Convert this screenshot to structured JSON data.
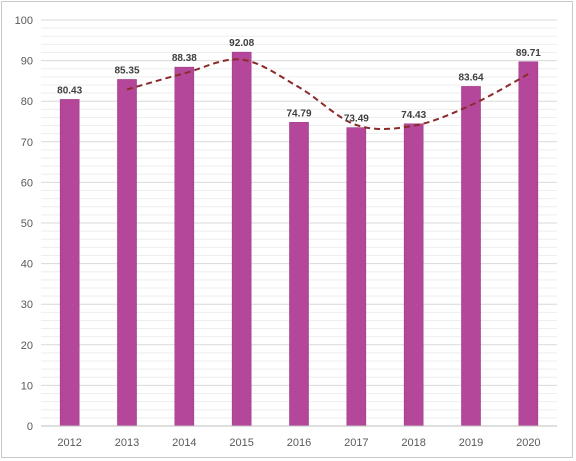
{
  "chart_data": {
    "type": "bar",
    "categories": [
      "2012",
      "2013",
      "2014",
      "2015",
      "2016",
      "2017",
      "2018",
      "2019",
      "2020"
    ],
    "series": [
      {
        "values": [
          80.43,
          85.35,
          88.38,
          92.08,
          74.79,
          73.49,
          74.43,
          83.64,
          89.71
        ]
      }
    ],
    "trendline": {
      "type": "moving-average",
      "period": 2,
      "style": "dashed",
      "color": "#8b2a2a"
    },
    "title": "",
    "xlabel": "",
    "ylabel": "",
    "ylim": [
      0,
      100
    ],
    "yticks": [
      0,
      10,
      20,
      30,
      40,
      50,
      60,
      70,
      80,
      90,
      100
    ],
    "grid": true,
    "legend": "none",
    "colors": {
      "bar": "#b5479b",
      "bar_edge": "#9c3a86",
      "trend": "#8b2a2a",
      "grid": "#e3e3e3",
      "axis_text": "#595959"
    }
  }
}
